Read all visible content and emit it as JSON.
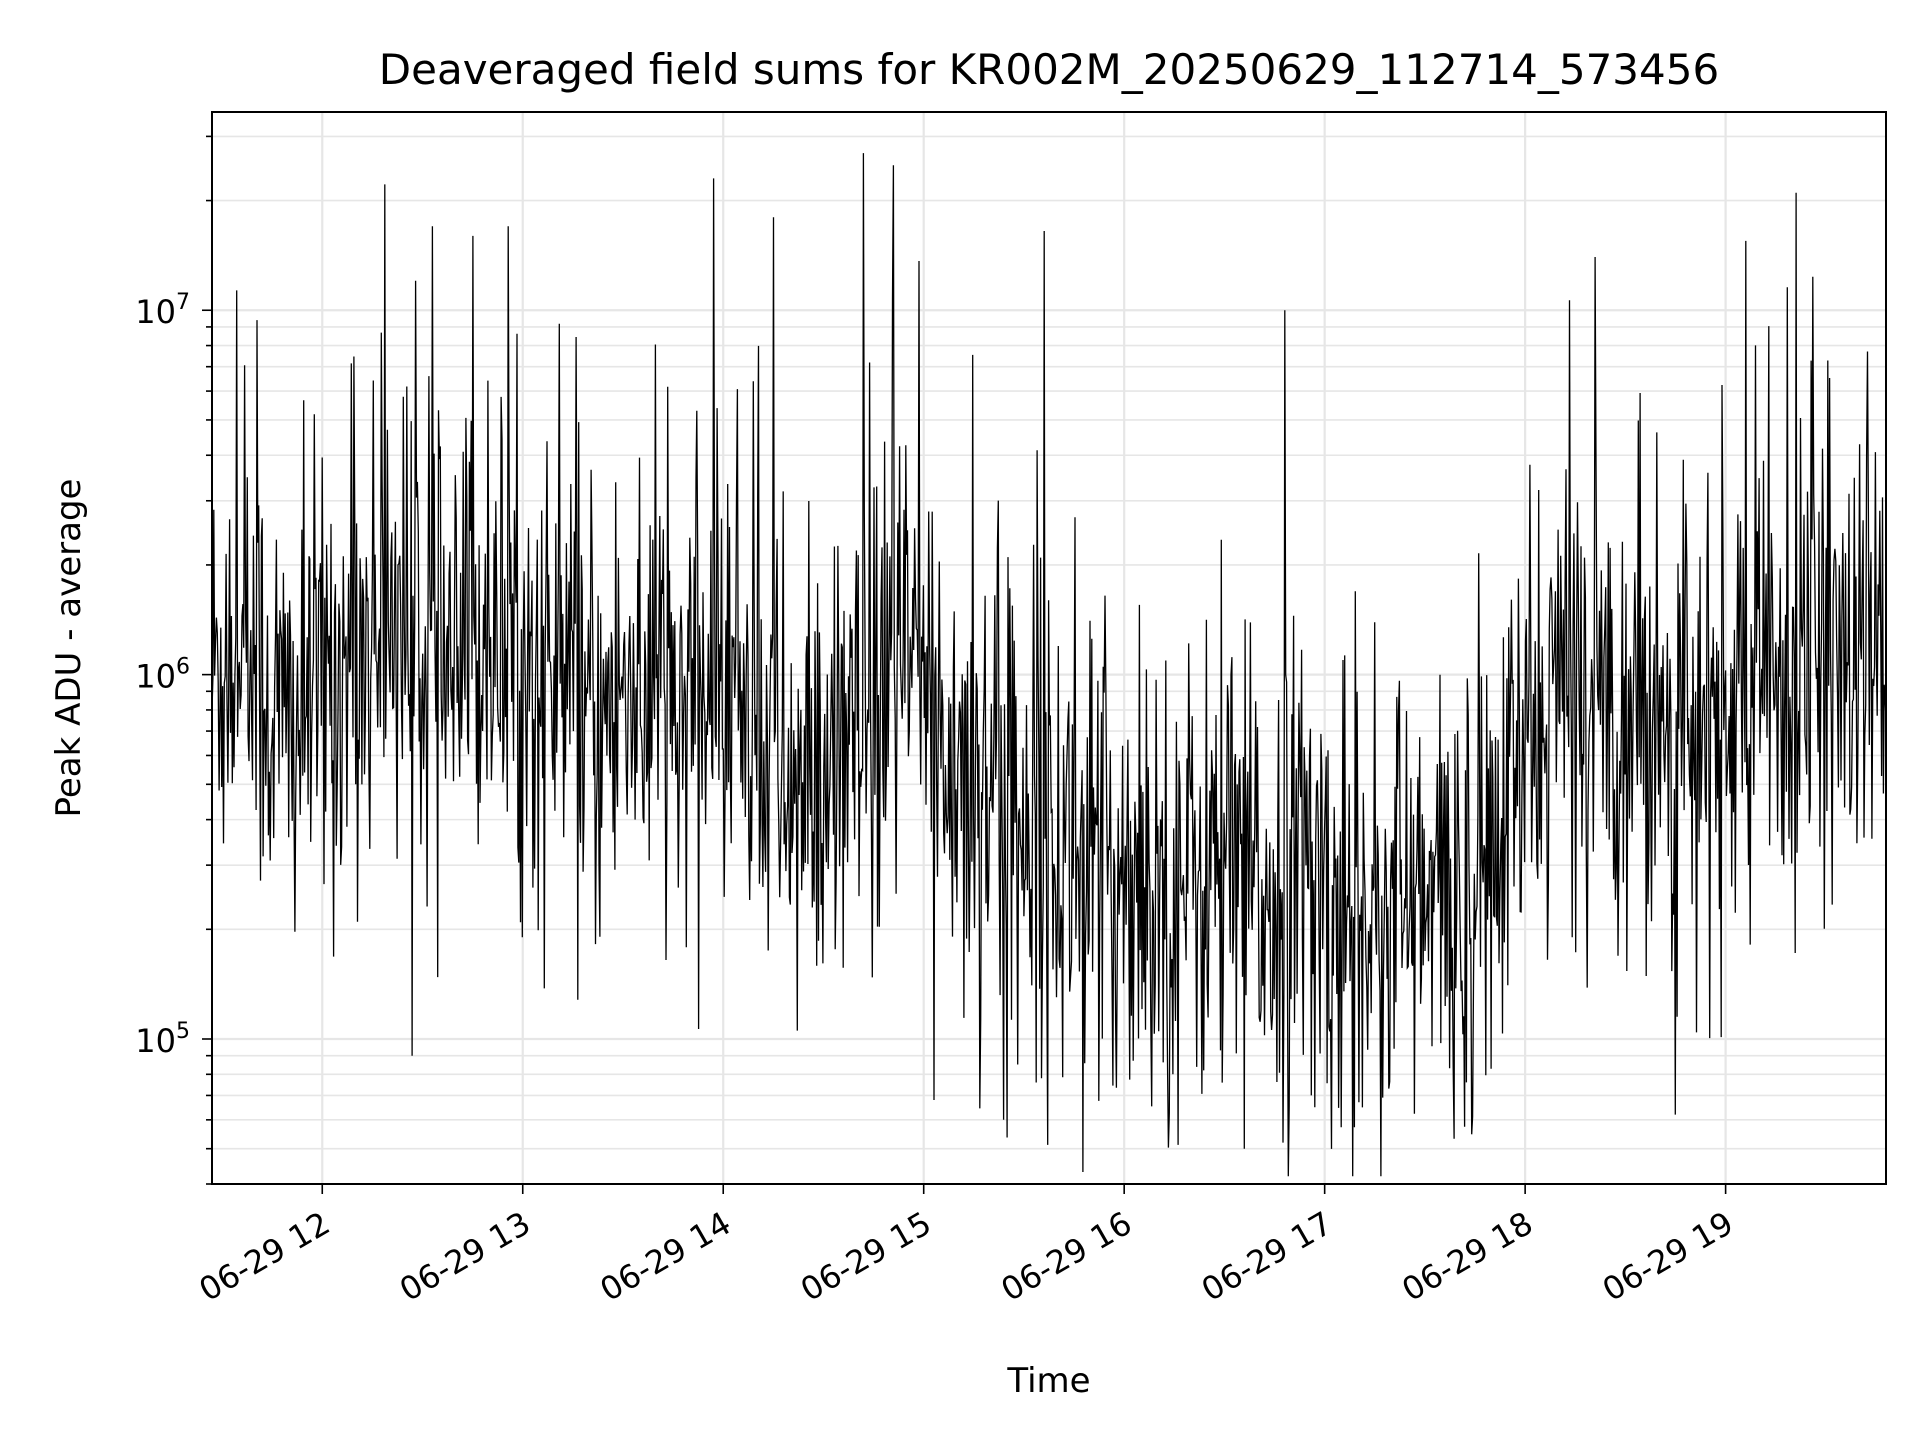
{
  "chart_data": {
    "type": "line",
    "title": "Deaveraged field sums for KR002M_20250629_112714_573456",
    "xlabel": "Time",
    "ylabel": "Peak ADU - average",
    "yscale": "log",
    "ylim": [
      40000,
      35000000
    ],
    "xlim": [
      "2025-06-29 11:27",
      "2025-06-29 19:48"
    ],
    "grid": true,
    "line_color": "#000000",
    "grid_color": "#e6e6e6",
    "x_ticks": [
      {
        "value": "2025-06-29 12:00",
        "label": "06-29 12"
      },
      {
        "value": "2025-06-29 13:00",
        "label": "06-29 13"
      },
      {
        "value": "2025-06-29 14:00",
        "label": "06-29 14"
      },
      {
        "value": "2025-06-29 15:00",
        "label": "06-29 15"
      },
      {
        "value": "2025-06-29 16:00",
        "label": "06-29 16"
      },
      {
        "value": "2025-06-29 17:00",
        "label": "06-29 17"
      },
      {
        "value": "2025-06-29 18:00",
        "label": "06-29 18"
      },
      {
        "value": "2025-06-29 19:00",
        "label": "06-29 19"
      }
    ],
    "y_ticks": [
      {
        "value": 100000,
        "base": "10",
        "exp": "5"
      },
      {
        "value": 1000000,
        "base": "10",
        "exp": "6"
      },
      {
        "value": 10000000,
        "base": "10",
        "exp": "7"
      }
    ],
    "series": [
      {
        "x": [
          "2025-06-29 11:27",
          "2025-06-29 11:33",
          "2025-06-29 11:39",
          "2025-06-29 11:45",
          "2025-06-29 11:51",
          "2025-06-29 11:57",
          "2025-06-29 12:03",
          "2025-06-29 12:09",
          "2025-06-29 12:15",
          "2025-06-29 12:21",
          "2025-06-29 12:27",
          "2025-06-29 12:33",
          "2025-06-29 12:39",
          "2025-06-29 12:45",
          "2025-06-29 12:51",
          "2025-06-29 12:57",
          "2025-06-29 13:03",
          "2025-06-29 13:09",
          "2025-06-29 13:15",
          "2025-06-29 13:21",
          "2025-06-29 13:27",
          "2025-06-29 13:33",
          "2025-06-29 13:39",
          "2025-06-29 13:45",
          "2025-06-29 13:51",
          "2025-06-29 13:57",
          "2025-06-29 14:03",
          "2025-06-29 14:09",
          "2025-06-29 14:15",
          "2025-06-29 14:21",
          "2025-06-29 14:27",
          "2025-06-29 14:33",
          "2025-06-29 14:39",
          "2025-06-29 14:45",
          "2025-06-29 14:51",
          "2025-06-29 14:57",
          "2025-06-29 15:03",
          "2025-06-29 15:09",
          "2025-06-29 15:15",
          "2025-06-29 15:21",
          "2025-06-29 15:27",
          "2025-06-29 15:33",
          "2025-06-29 15:39",
          "2025-06-29 15:45",
          "2025-06-29 15:51",
          "2025-06-29 15:57",
          "2025-06-29 16:03",
          "2025-06-29 16:09",
          "2025-06-29 16:15",
          "2025-06-29 16:21",
          "2025-06-29 16:27",
          "2025-06-29 16:33",
          "2025-06-29 16:39",
          "2025-06-29 16:45",
          "2025-06-29 16:51",
          "2025-06-29 16:57",
          "2025-06-29 17:03",
          "2025-06-29 17:09",
          "2025-06-29 17:15",
          "2025-06-29 17:21",
          "2025-06-29 17:27",
          "2025-06-29 17:33",
          "2025-06-29 17:39",
          "2025-06-29 17:45",
          "2025-06-29 17:51",
          "2025-06-29 17:57",
          "2025-06-29 18:03",
          "2025-06-29 18:09",
          "2025-06-29 18:15",
          "2025-06-29 18:21",
          "2025-06-29 18:27",
          "2025-06-29 18:33",
          "2025-06-29 18:39",
          "2025-06-29 18:45",
          "2025-06-29 18:51",
          "2025-06-29 18:57",
          "2025-06-29 19:03",
          "2025-06-29 19:09",
          "2025-06-29 19:15",
          "2025-06-29 19:21",
          "2025-06-29 19:27",
          "2025-06-29 19:33",
          "2025-06-29 19:39",
          "2025-06-29 19:45"
        ],
        "y": [
          1000000,
          1200000,
          1100000,
          800000,
          700000,
          900000,
          1000000,
          1100000,
          1300000,
          1600000,
          1400000,
          1000000,
          900000,
          1200000,
          1500000,
          1100000,
          900000,
          1000000,
          900000,
          700000,
          800000,
          1000000,
          900000,
          800000,
          700000,
          900000,
          1100000,
          800000,
          600000,
          500000,
          400000,
          500000,
          600000,
          700000,
          1000000,
          1100000,
          800000,
          600000,
          500000,
          600000,
          400000,
          500000,
          300000,
          350000,
          300000,
          280000,
          300000,
          270000,
          260000,
          280000,
          300000,
          270000,
          260000,
          250000,
          300000,
          280000,
          230000,
          220000,
          240000,
          250000,
          220000,
          230000,
          230000,
          280000,
          300000,
          500000,
          700000,
          900000,
          1000000,
          900000,
          800000,
          900000,
          800000,
          700000,
          600000,
          700000,
          800000,
          900000,
          1000000,
          900000,
          1000000,
          1100000,
          1000000,
          1100000
        ],
        "peaks": [
          {
            "x": "2025-06-29 12:33",
            "y": 17000000
          },
          {
            "x": "2025-06-29 12:45",
            "y": 16000000
          },
          {
            "x": "2025-06-29 13:57",
            "y": 23000000
          },
          {
            "x": "2025-06-29 14:15",
            "y": 18000000
          },
          {
            "x": "2025-06-29 14:42",
            "y": 27000000
          },
          {
            "x": "2025-06-29 14:51",
            "y": 25000000
          },
          {
            "x": "2025-06-29 15:36",
            "y": 16500000
          },
          {
            "x": "2025-06-29 16:48",
            "y": 10000000
          },
          {
            "x": "2025-06-29 18:21",
            "y": 14000000
          },
          {
            "x": "2025-06-29 19:06",
            "y": 15500000
          },
          {
            "x": "2025-06-29 19:21",
            "y": 21000000
          }
        ],
        "troughs": [
          {
            "x": "2025-06-29 12:27",
            "y": 90000
          },
          {
            "x": "2025-06-29 15:03",
            "y": 68000
          },
          {
            "x": "2025-06-29 15:24",
            "y": 60000
          },
          {
            "x": "2025-06-29 16:36",
            "y": 50000
          },
          {
            "x": "2025-06-29 16:57",
            "y": 65000
          },
          {
            "x": "2025-06-29 18:45",
            "y": 62000
          }
        ]
      }
    ]
  }
}
